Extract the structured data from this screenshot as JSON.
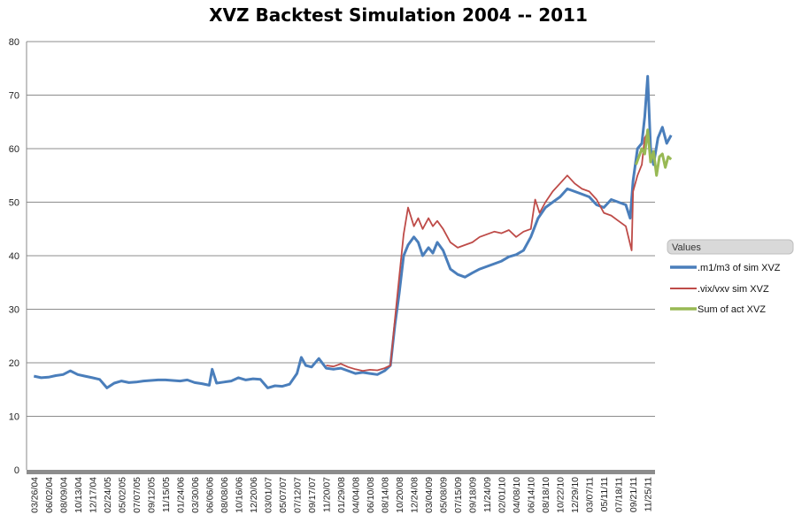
{
  "chart_data": {
    "type": "line",
    "title": "XVZ Backtest Simulation 2004 -- 2011",
    "xlabel": "",
    "ylabel": "",
    "ylim": [
      0,
      80
    ],
    "yticks": [
      0,
      10,
      20,
      30,
      40,
      50,
      60,
      70,
      80
    ],
    "grid": true,
    "legend_position": "right",
    "legend_title": "Values",
    "x_tick_labels": [
      "03/26/04",
      "06/02/04",
      "08/09/04",
      "10/13/04",
      "12/17/04",
      "02/24/05",
      "05/02/05",
      "07/07/05",
      "09/12/05",
      "11/15/05",
      "01/24/06",
      "03/30/06",
      "06/06/06",
      "08/08/06",
      "10/16/06",
      "12/20/06",
      "03/01/07",
      "05/07/07",
      "07/12/07",
      "09/17/07",
      "11/20/07",
      "01/29/08",
      "04/04/08",
      "06/10/08",
      "08/14/08",
      "10/20/08",
      "12/24/08",
      "03/04/09",
      "05/08/09",
      "07/15/09",
      "09/18/09",
      "11/24/09",
      "02/01/10",
      "04/08/10",
      "06/14/10",
      "08/18/10",
      "10/22/10",
      "12/29/10",
      "03/07/11",
      "05/11/11",
      "07/18/11",
      "09/21/11",
      "11/25/11"
    ],
    "series": [
      {
        "name": ".m1/m3 of sim XVZ",
        "color": "#4a7ebb",
        "points": [
          [
            0,
            17.5
          ],
          [
            0.5,
            17.2
          ],
          [
            1,
            17.3
          ],
          [
            1.5,
            17.6
          ],
          [
            2,
            17.8
          ],
          [
            2.5,
            18.5
          ],
          [
            3,
            17.8
          ],
          [
            3.5,
            17.5
          ],
          [
            4,
            17.2
          ],
          [
            4.5,
            16.9
          ],
          [
            5,
            15.3
          ],
          [
            5.5,
            16.2
          ],
          [
            6,
            16.6
          ],
          [
            6.5,
            16.3
          ],
          [
            7,
            16.4
          ],
          [
            7.5,
            16.6
          ],
          [
            8,
            16.7
          ],
          [
            8.5,
            16.8
          ],
          [
            9,
            16.8
          ],
          [
            9.5,
            16.7
          ],
          [
            10,
            16.6
          ],
          [
            10.5,
            16.8
          ],
          [
            11,
            16.3
          ],
          [
            11.5,
            16.1
          ],
          [
            12,
            15.8
          ],
          [
            12.2,
            18.8
          ],
          [
            12.5,
            16.2
          ],
          [
            13,
            16.4
          ],
          [
            13.5,
            16.6
          ],
          [
            14,
            17.2
          ],
          [
            14.5,
            16.8
          ],
          [
            15,
            17.0
          ],
          [
            15.5,
            16.9
          ],
          [
            16,
            15.3
          ],
          [
            16.5,
            15.7
          ],
          [
            17,
            15.6
          ],
          [
            17.5,
            16.0
          ],
          [
            18,
            18.0
          ],
          [
            18.3,
            21.0
          ],
          [
            18.6,
            19.5
          ],
          [
            19,
            19.2
          ],
          [
            19.5,
            20.8
          ],
          [
            20,
            19.0
          ],
          [
            20.5,
            18.8
          ],
          [
            21,
            19.0
          ],
          [
            21.5,
            18.5
          ],
          [
            22,
            18.0
          ],
          [
            22.5,
            18.2
          ],
          [
            23,
            18.0
          ],
          [
            23.5,
            17.8
          ],
          [
            24,
            18.5
          ],
          [
            24.4,
            19.5
          ],
          [
            24.7,
            27.0
          ],
          [
            25,
            33.0
          ],
          [
            25.3,
            40.0
          ],
          [
            25.6,
            42.0
          ],
          [
            26,
            43.5
          ],
          [
            26.3,
            42.5
          ],
          [
            26.6,
            40.0
          ],
          [
            27,
            41.5
          ],
          [
            27.3,
            40.5
          ],
          [
            27.6,
            42.5
          ],
          [
            28,
            41.0
          ],
          [
            28.5,
            37.5
          ],
          [
            29,
            36.5
          ],
          [
            29.5,
            36.0
          ],
          [
            30,
            36.8
          ],
          [
            30.5,
            37.5
          ],
          [
            31,
            38.0
          ],
          [
            31.5,
            38.5
          ],
          [
            32,
            39.0
          ],
          [
            32.5,
            39.8
          ],
          [
            33,
            40.2
          ],
          [
            33.5,
            41.0
          ],
          [
            34,
            43.5
          ],
          [
            34.5,
            47.0
          ],
          [
            35,
            49.0
          ],
          [
            35.5,
            50.0
          ],
          [
            36,
            51.0
          ],
          [
            36.5,
            52.5
          ],
          [
            37,
            52.0
          ],
          [
            37.5,
            51.5
          ],
          [
            38,
            51.0
          ],
          [
            38.5,
            49.5
          ],
          [
            39,
            49.0
          ],
          [
            39.5,
            50.5
          ],
          [
            40,
            50.0
          ],
          [
            40.5,
            49.5
          ],
          [
            40.8,
            47.0
          ],
          [
            41,
            54.0
          ],
          [
            41.3,
            60.0
          ],
          [
            41.6,
            61.0
          ],
          [
            41.8,
            66.0
          ],
          [
            42,
            73.5
          ],
          [
            42.2,
            60.0
          ],
          [
            42.4,
            57.0
          ],
          [
            42.7,
            62.0
          ],
          [
            43,
            64.0
          ],
          [
            43.3,
            61.0
          ],
          [
            43.6,
            62.5
          ]
        ]
      },
      {
        "name": ".vix/vxv sim XVZ",
        "color": "#be4b48",
        "points": [
          [
            20,
            19.5
          ],
          [
            20.5,
            19.3
          ],
          [
            21,
            19.8
          ],
          [
            21.5,
            19.2
          ],
          [
            22,
            18.8
          ],
          [
            22.5,
            18.5
          ],
          [
            23,
            18.7
          ],
          [
            23.5,
            18.6
          ],
          [
            24,
            19.0
          ],
          [
            24.4,
            19.5
          ],
          [
            24.7,
            28.0
          ],
          [
            25,
            36.0
          ],
          [
            25.3,
            44.0
          ],
          [
            25.6,
            49.0
          ],
          [
            26,
            45.5
          ],
          [
            26.3,
            47.0
          ],
          [
            26.6,
            45.0
          ],
          [
            27,
            47.0
          ],
          [
            27.3,
            45.5
          ],
          [
            27.6,
            46.5
          ],
          [
            28,
            45.0
          ],
          [
            28.5,
            42.5
          ],
          [
            29,
            41.5
          ],
          [
            29.5,
            42.0
          ],
          [
            30,
            42.5
          ],
          [
            30.5,
            43.5
          ],
          [
            31,
            44.0
          ],
          [
            31.5,
            44.5
          ],
          [
            32,
            44.2
          ],
          [
            32.5,
            44.8
          ],
          [
            33,
            43.5
          ],
          [
            33.5,
            44.5
          ],
          [
            34,
            45.0
          ],
          [
            34.3,
            50.5
          ],
          [
            34.6,
            48.0
          ],
          [
            35,
            50.0
          ],
          [
            35.5,
            52.0
          ],
          [
            36,
            53.5
          ],
          [
            36.5,
            55.0
          ],
          [
            37,
            53.5
          ],
          [
            37.5,
            52.5
          ],
          [
            38,
            52.0
          ],
          [
            38.5,
            50.5
          ],
          [
            39,
            48.0
          ],
          [
            39.5,
            47.5
          ],
          [
            40,
            46.5
          ],
          [
            40.5,
            45.5
          ],
          [
            40.9,
            41.0
          ],
          [
            41,
            52.0
          ],
          [
            41.3,
            55.0
          ],
          [
            41.6,
            57.0
          ],
          [
            41.8,
            62.0
          ],
          [
            42,
            63.0
          ]
        ]
      },
      {
        "name": "Sum of act XVZ",
        "color": "#98b954",
        "points": [
          [
            41.2,
            57.0
          ],
          [
            41.4,
            58.5
          ],
          [
            41.6,
            60.0
          ],
          [
            41.8,
            59.0
          ],
          [
            42,
            63.5
          ],
          [
            42.2,
            57.5
          ],
          [
            42.4,
            59.5
          ],
          [
            42.6,
            55.0
          ],
          [
            42.8,
            58.5
          ],
          [
            43,
            59.0
          ],
          [
            43.2,
            56.5
          ],
          [
            43.4,
            58.5
          ],
          [
            43.6,
            58.0
          ]
        ]
      }
    ]
  }
}
